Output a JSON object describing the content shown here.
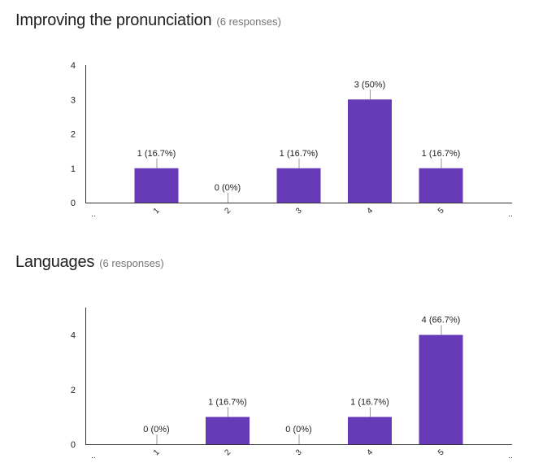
{
  "charts": [
    {
      "title": "Improving the pronunciation",
      "responses": "(6 responses)"
    },
    {
      "title": "Languages",
      "responses": "(6 responses)"
    }
  ],
  "chart_data": [
    {
      "type": "bar",
      "title": "Improving the pronunciation",
      "categories": [
        "1",
        "2",
        "3",
        "4",
        "5"
      ],
      "values": [
        1,
        0,
        1,
        3,
        1
      ],
      "data_labels": [
        "1 (16.7%)",
        "0 (0%)",
        "1 (16.7%)",
        "3 (50%)",
        "1 (16.7%)"
      ],
      "yticks": [
        0,
        1,
        2,
        3,
        4
      ],
      "ylim": [
        0,
        4
      ],
      "xlabel": "",
      "ylabel": "",
      "bar_color": "#673ab7",
      "grid": false,
      "legend": "none"
    },
    {
      "type": "bar",
      "title": "Languages",
      "categories": [
        "1",
        "2",
        "3",
        "4",
        "5"
      ],
      "values": [
        0,
        1,
        0,
        1,
        4
      ],
      "data_labels": [
        "0 (0%)",
        "1 (16.7%)",
        "0 (0%)",
        "1 (16.7%)",
        "4 (66.7%)"
      ],
      "yticks": [
        0,
        2,
        4
      ],
      "ylim": [
        0,
        5
      ],
      "xlabel": "",
      "ylabel": "",
      "bar_color": "#673ab7",
      "grid": false,
      "legend": "none"
    }
  ]
}
